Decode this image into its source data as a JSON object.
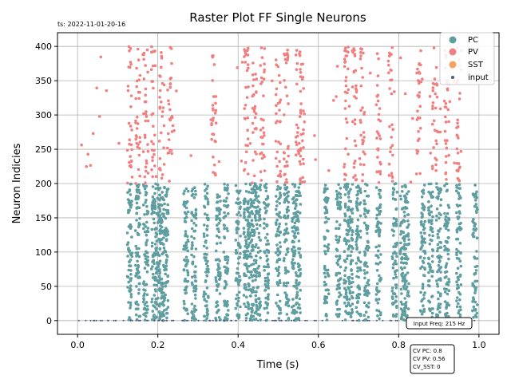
{
  "timestamp": "ts: 2022-11-01-20-16",
  "chart_data": {
    "type": "scatter",
    "title": "Raster Plot FF Single Neurons",
    "xlabel": "Time (s)",
    "ylabel": "Neuron Indicies",
    "xlim": [
      -0.05,
      1.05
    ],
    "ylim": [
      -20,
      420
    ],
    "xticks": [
      0.0,
      0.2,
      0.4,
      0.6,
      0.8,
      1.0
    ],
    "xtick_labels": [
      "0.0",
      "0.2",
      "0.4",
      "0.6",
      "0.8",
      "1.0"
    ],
    "yticks": [
      0,
      50,
      100,
      150,
      200,
      250,
      300,
      350,
      400
    ],
    "ytick_labels": [
      "0",
      "50",
      "100",
      "150",
      "200",
      "250",
      "300",
      "350",
      "400"
    ],
    "grid": true,
    "legend_position": "top-right",
    "colors": {
      "PC": "#5f9ea0",
      "PV": "#f08080",
      "SST": "#f4a460",
      "input": "#4a5a78"
    },
    "legend": [
      {
        "name": "PC",
        "color": "#5f9ea0",
        "marker": "circle"
      },
      {
        "name": "PV",
        "color": "#f08080",
        "marker": "circle"
      },
      {
        "name": "SST",
        "color": "#f4a460",
        "marker": "circle"
      },
      {
        "name": "input",
        "color": "#4a5a78",
        "marker": "small-circle"
      }
    ],
    "series": [
      {
        "name": "PC",
        "neuron_range": [
          0,
          200
        ],
        "burst_times_s": [
          0.13,
          0.15,
          0.17,
          0.19,
          0.2,
          0.21,
          0.22,
          0.27,
          0.29,
          0.32,
          0.35,
          0.37,
          0.4,
          0.42,
          0.43,
          0.44,
          0.45,
          0.47,
          0.5,
          0.52,
          0.54,
          0.55,
          0.62,
          0.65,
          0.67,
          0.68,
          0.7,
          0.72,
          0.75,
          0.79,
          0.81,
          0.82,
          0.86,
          0.88,
          0.9,
          0.92,
          0.95,
          0.99
        ]
      },
      {
        "name": "PV",
        "neuron_range": [
          200,
          400
        ],
        "burst_times_s": [
          0.13,
          0.15,
          0.17,
          0.19,
          0.21,
          0.23,
          0.34,
          0.42,
          0.44,
          0.46,
          0.5,
          0.52,
          0.55,
          0.56,
          0.67,
          0.69,
          0.71,
          0.75,
          0.78,
          0.85,
          0.89,
          0.92,
          0.95
        ]
      },
      {
        "name": "SST",
        "neuron_range": [],
        "burst_times_s": []
      },
      {
        "name": "input",
        "neuron_range": [
          0,
          0
        ],
        "spike_rate_hz": 215
      }
    ],
    "annotations": [
      {
        "text": "Input Freq: 215 Hz"
      },
      {
        "text": "CV PC: 0.8"
      },
      {
        "text": "CV PV: 0.56"
      },
      {
        "text": "CV_SST: 0"
      }
    ]
  }
}
